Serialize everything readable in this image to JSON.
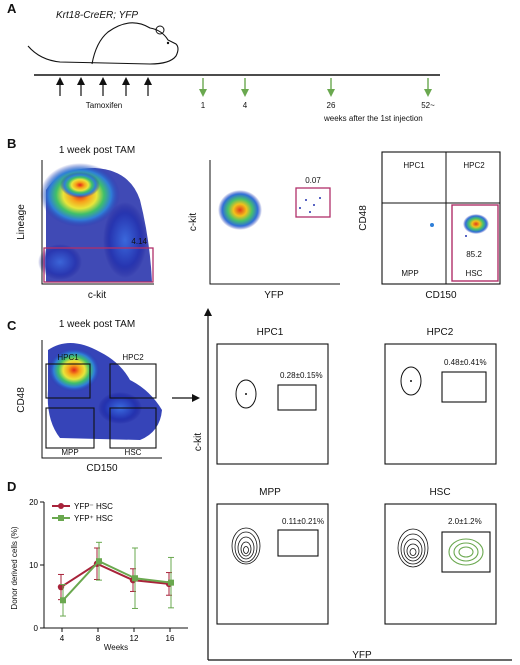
{
  "panels": {
    "a": "A",
    "b": "B",
    "c": "C",
    "d": "D"
  },
  "panel_a": {
    "mouse_label": "Krt18-CreER; YFP",
    "tamoxifen_label": "Tamoxifen",
    "timepoints": [
      "1",
      "4",
      "26",
      "52~"
    ],
    "timeline_caption": "weeks after the 1st injection",
    "colors": {
      "tamoxifen_arrow": "#111111",
      "timepoint_arrow": "#6aa84f"
    }
  },
  "panel_b": {
    "plot1": {
      "title": "1 week post TAM",
      "xlabel": "c-kit",
      "ylabel": "Lineage",
      "gate_value": "4.14"
    },
    "plot2": {
      "xlabel": "YFP",
      "ylabel": "c-kit",
      "gate_value": "0.07"
    },
    "plot3": {
      "xlabel": "CD150",
      "ylabel": "CD48",
      "quadrants": [
        "HPC1",
        "HPC2",
        "MPP",
        "HSC"
      ],
      "gate_value": "85.2"
    },
    "colors": {
      "gate": "#b0306a"
    }
  },
  "panel_c": {
    "overview": {
      "title": "1 week post TAM",
      "xlabel": "CD150",
      "ylabel": "CD48",
      "gates": [
        "HPC1",
        "HPC2",
        "MPP",
        "HSC"
      ]
    },
    "contours": {
      "ylabel": "c-kit",
      "xlabel": "YFP",
      "subplots": [
        {
          "title": "HPC1",
          "value": "0.28±0.15%"
        },
        {
          "title": "HPC2",
          "value": "0.48±0.41%"
        },
        {
          "title": "MPP",
          "value": "0.11±0.21%"
        },
        {
          "title": "HSC",
          "value": "2.0±1.2%"
        }
      ]
    },
    "colors": {
      "yfp_contour": "#6aa84f"
    }
  },
  "chart_data": {
    "type": "line",
    "x": [
      4,
      8,
      12,
      16
    ],
    "xlabel": "Weeks",
    "ylabel": "Donor derived cells (%)",
    "ylim": [
      0,
      20
    ],
    "yticks": [
      0,
      10,
      20
    ],
    "xticks": [
      4,
      8,
      12,
      16
    ],
    "legend_position": "top-left",
    "series": [
      {
        "name": "YFP⁻ HSC",
        "color": "#a8233a",
        "values": [
          6.5,
          10.2,
          7.6,
          7.0
        ],
        "errors": [
          2.0,
          2.5,
          1.8,
          1.8
        ]
      },
      {
        "name": "YFP⁺ HSC",
        "color": "#6aa84f",
        "values": [
          4.4,
          10.6,
          7.9,
          7.2
        ],
        "errors": [
          2.5,
          3.0,
          4.8,
          4.0
        ]
      }
    ]
  }
}
